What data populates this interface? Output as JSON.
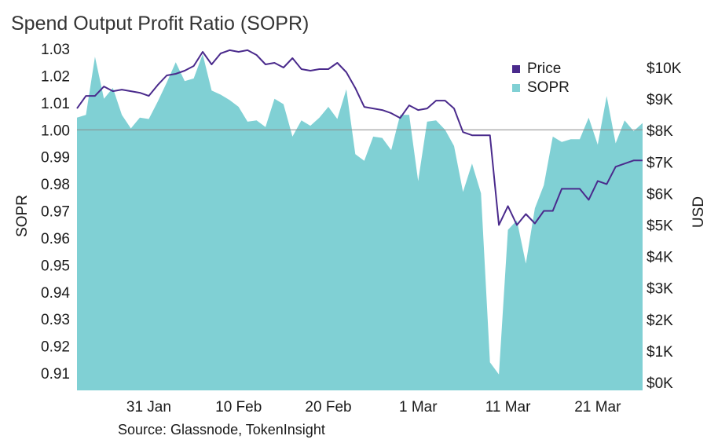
{
  "chart_data": {
    "type": "area",
    "title": "Spend Output Profit Ratio (SOPR)",
    "source": "Source: Glassnode, TokenInsight",
    "y_left_label": "SOPR",
    "y_right_label": "USD",
    "y_left_range": [
      0.905,
      1.03
    ],
    "y_left_ticks": [
      "1.03",
      "1.02",
      "1.01",
      "1.00",
      "0.99",
      "0.98",
      "0.97",
      "0.96",
      "0.95",
      "0.94",
      "0.93",
      "0.92",
      "0.91"
    ],
    "y_right_range": [
      0,
      10500
    ],
    "y_right_ticks": [
      "$10K",
      "$9K",
      "$8K",
      "$7K",
      "$6K",
      "$5K",
      "$4K",
      "$3K",
      "$2K",
      "$1K",
      "$0K"
    ],
    "x_range": [
      "2020-01-23",
      "2020-03-26"
    ],
    "x_ticks": [
      {
        "date": "2020-01-31",
        "label": "31 Jan"
      },
      {
        "date": "2020-02-10",
        "label": "10 Feb"
      },
      {
        "date": "2020-02-20",
        "label": "20 Feb"
      },
      {
        "date": "2020-03-01",
        "label": "1 Mar"
      },
      {
        "date": "2020-03-11",
        "label": "11 Mar"
      },
      {
        "date": "2020-03-21",
        "label": "21 Mar"
      }
    ],
    "reference_line": {
      "axis": "left",
      "value": 1.0
    },
    "legend": {
      "position": "top-right",
      "items": [
        {
          "name": "Price",
          "color": "#4a2a8c",
          "shape": "square"
        },
        {
          "name": "SOPR",
          "color": "#80d0d4",
          "shape": "square"
        }
      ]
    },
    "series": [
      {
        "name": "SOPR",
        "axis": "left",
        "kind": "area",
        "color": "#80d0d4",
        "x": [
          "2020-01-23",
          "2020-01-24",
          "2020-01-25",
          "2020-01-26",
          "2020-01-27",
          "2020-01-28",
          "2020-01-29",
          "2020-01-30",
          "2020-01-31",
          "2020-02-01",
          "2020-02-02",
          "2020-02-03",
          "2020-02-04",
          "2020-02-05",
          "2020-02-06",
          "2020-02-07",
          "2020-02-08",
          "2020-02-09",
          "2020-02-10",
          "2020-02-11",
          "2020-02-12",
          "2020-02-13",
          "2020-02-14",
          "2020-02-15",
          "2020-02-16",
          "2020-02-17",
          "2020-02-18",
          "2020-02-19",
          "2020-02-20",
          "2020-02-21",
          "2020-02-22",
          "2020-02-23",
          "2020-02-24",
          "2020-02-25",
          "2020-02-26",
          "2020-02-27",
          "2020-02-28",
          "2020-02-29",
          "2020-03-01",
          "2020-03-02",
          "2020-03-03",
          "2020-03-04",
          "2020-03-05",
          "2020-03-06",
          "2020-03-07",
          "2020-03-08",
          "2020-03-09",
          "2020-03-10",
          "2020-03-11",
          "2020-03-12",
          "2020-03-13",
          "2020-03-14",
          "2020-03-15",
          "2020-03-16",
          "2020-03-17",
          "2020-03-18",
          "2020-03-19",
          "2020-03-20",
          "2020-03-21",
          "2020-03-22",
          "2020-03-23",
          "2020-03-24",
          "2020-03-25",
          "2020-03-26"
        ],
        "values": [
          1.0045,
          1.0055,
          1.027,
          1.0115,
          1.0155,
          1.0055,
          1.0005,
          1.0045,
          1.004,
          1.0105,
          1.0175,
          1.025,
          1.018,
          1.019,
          1.028,
          1.0145,
          1.013,
          1.011,
          1.0085,
          1.003,
          1.0035,
          1.001,
          1.0115,
          1.0095,
          0.9975,
          1.0035,
          1.0015,
          1.0045,
          1.0085,
          1.004,
          1.015,
          0.991,
          0.9885,
          0.9975,
          0.997,
          0.9925,
          1.0055,
          1.0055,
          0.981,
          1.003,
          1.0035,
          1.0,
          0.994,
          0.977,
          0.9875,
          0.9765,
          0.914,
          0.9095,
          0.963,
          0.9665,
          0.9505,
          0.971,
          0.9795,
          0.9975,
          0.9955,
          0.9965,
          0.9965,
          1.0045,
          0.9945,
          1.0125,
          0.995,
          1.0035,
          0.9995,
          1.0025
        ]
      },
      {
        "name": "Price",
        "axis": "right",
        "kind": "line",
        "color": "#4a2a8c",
        "x": [
          "2020-01-23",
          "2020-01-24",
          "2020-01-25",
          "2020-01-26",
          "2020-01-27",
          "2020-01-28",
          "2020-01-29",
          "2020-01-30",
          "2020-01-31",
          "2020-02-01",
          "2020-02-02",
          "2020-02-03",
          "2020-02-04",
          "2020-02-05",
          "2020-02-06",
          "2020-02-07",
          "2020-02-08",
          "2020-02-09",
          "2020-02-10",
          "2020-02-11",
          "2020-02-12",
          "2020-02-13",
          "2020-02-14",
          "2020-02-15",
          "2020-02-16",
          "2020-02-17",
          "2020-02-18",
          "2020-02-19",
          "2020-02-20",
          "2020-02-21",
          "2020-02-22",
          "2020-02-23",
          "2020-02-24",
          "2020-02-25",
          "2020-02-26",
          "2020-02-27",
          "2020-02-28",
          "2020-02-29",
          "2020-03-01",
          "2020-03-02",
          "2020-03-03",
          "2020-03-04",
          "2020-03-05",
          "2020-03-06",
          "2020-03-07",
          "2020-03-08",
          "2020-03-09",
          "2020-03-10",
          "2020-03-11",
          "2020-03-12",
          "2020-03-13",
          "2020-03-14",
          "2020-03-15",
          "2020-03-16",
          "2020-03-17",
          "2020-03-18",
          "2020-03-19",
          "2020-03-20",
          "2020-03-21",
          "2020-03-22",
          "2020-03-23",
          "2020-03-24",
          "2020-03-25",
          "2020-03-26"
        ],
        "values": [
          8700,
          9100,
          9100,
          9400,
          9250,
          9300,
          9250,
          9200,
          9100,
          9450,
          9750,
          9800,
          9900,
          10050,
          10500,
          10100,
          10450,
          10550,
          10500,
          10550,
          10400,
          10100,
          10150,
          10000,
          10300,
          9950,
          9900,
          9950,
          9950,
          10150,
          9850,
          9350,
          8750,
          8700,
          8650,
          8550,
          8400,
          8800,
          8650,
          8700,
          8950,
          8950,
          8700,
          7950,
          7850,
          7850,
          7850,
          5000,
          5600,
          5000,
          5350,
          5050,
          5450,
          5450,
          6150,
          6150,
          6150,
          5800,
          6400,
          6300,
          6850,
          6950,
          7050,
          7050
        ]
      }
    ]
  }
}
